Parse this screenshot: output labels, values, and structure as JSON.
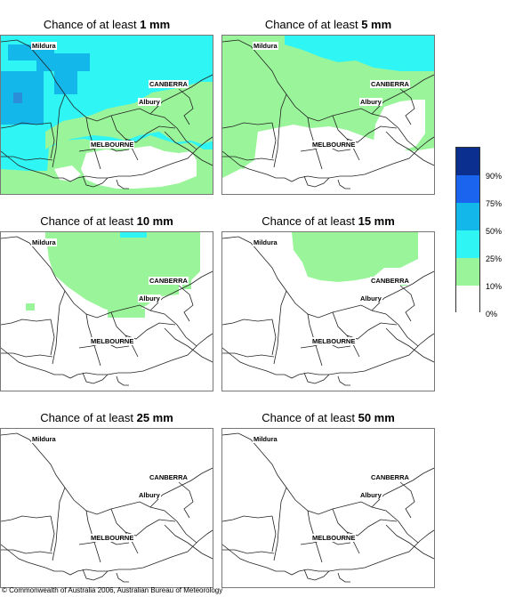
{
  "panels": [
    {
      "prefix": "Chance of at least ",
      "amount": "1 mm"
    },
    {
      "prefix": "Chance of at least ",
      "amount": "5 mm"
    },
    {
      "prefix": "Chance of at least ",
      "amount": "10 mm"
    },
    {
      "prefix": "Chance of at least ",
      "amount": "15 mm"
    },
    {
      "prefix": "Chance of at least ",
      "amount": "25 mm"
    },
    {
      "prefix": "Chance of at least ",
      "amount": "50 mm"
    }
  ],
  "places": {
    "mildura": "Mildura",
    "canberra": "CANBERRA",
    "albury": "Albury",
    "melbourne": "MELBOURNE"
  },
  "legend": {
    "labels": [
      "90%",
      "75%",
      "50%",
      "25%",
      "10%",
      "0%"
    ],
    "colors": {
      "ge90": "#0a2f8f",
      "75to90": "#1a64ee",
      "50to75": "#14b7ea",
      "25to50": "#2ff5f5",
      "10to25": "#9af59a",
      "lt10": "#ffffff"
    }
  },
  "copyright": "© Commonwealth of Australia 2006, Australian Bureau of Meteorology"
}
